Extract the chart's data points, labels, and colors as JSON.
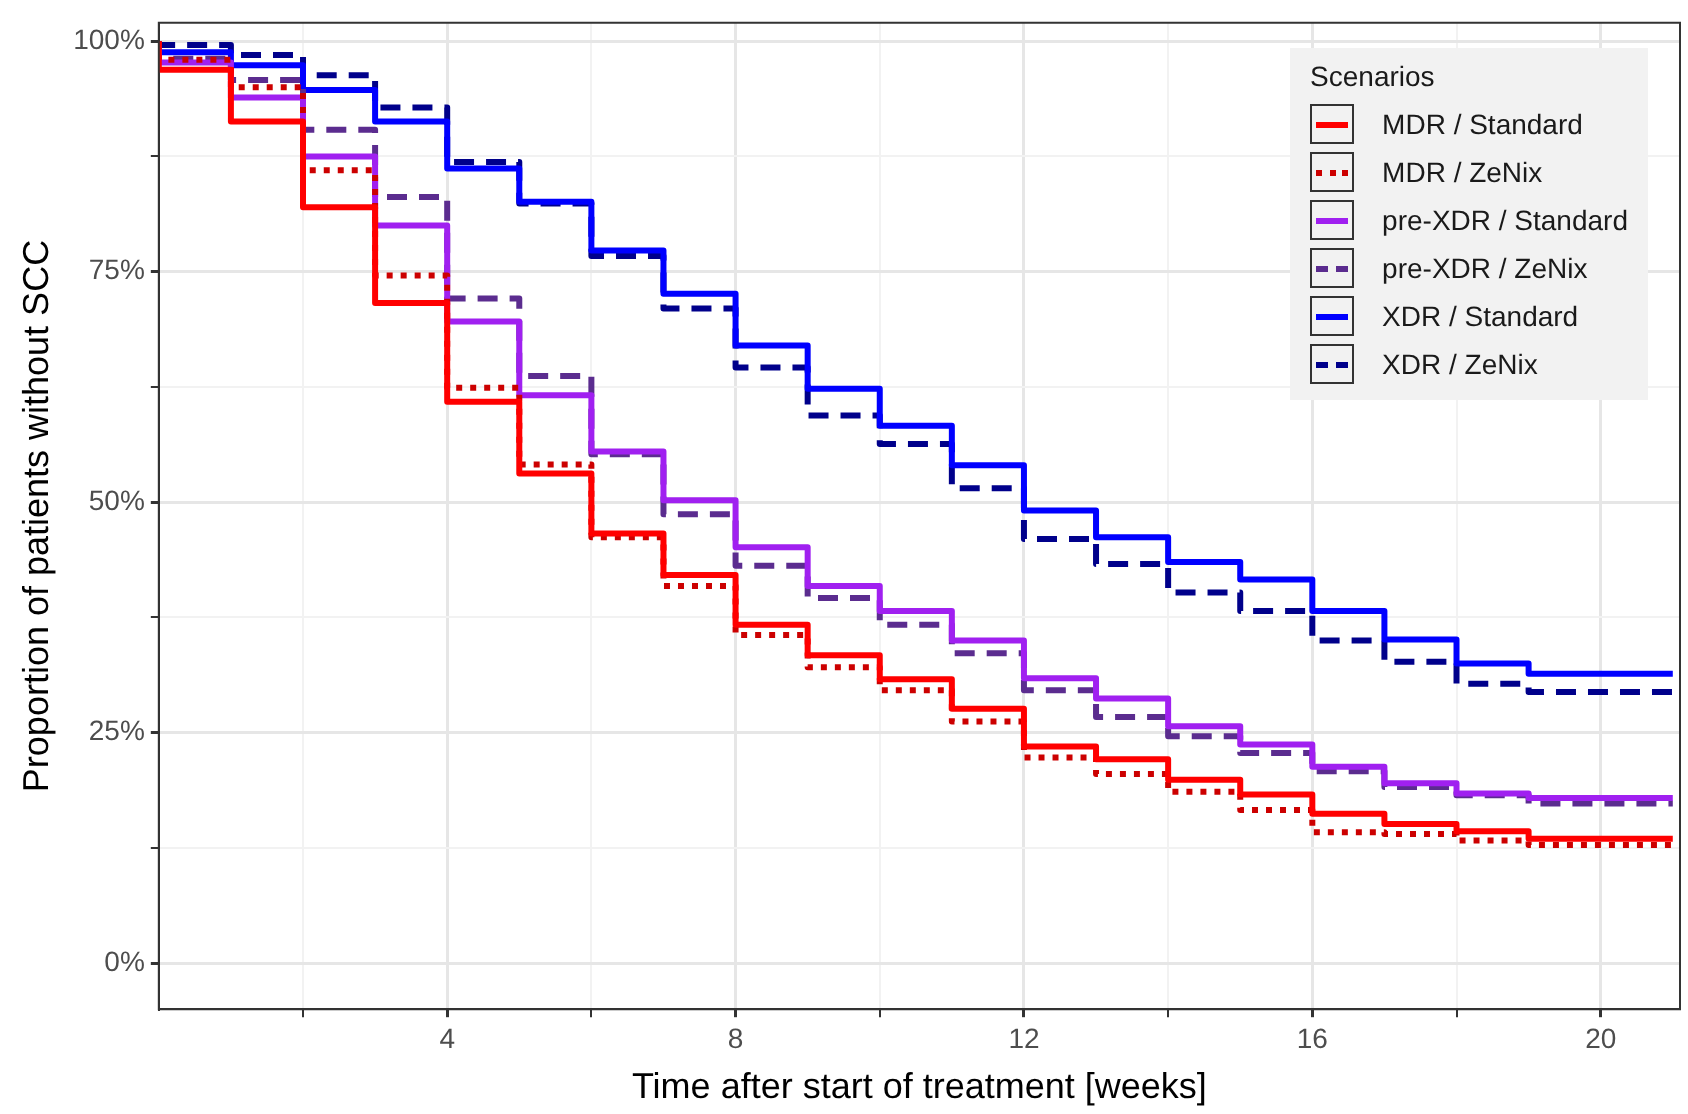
{
  "chart_data": {
    "type": "step",
    "xlabel": "Time after start of treatment [weeks]",
    "ylabel": "Proportion of patients without SCC",
    "legend_title": "Scenarios",
    "legend": "top right",
    "grid": true,
    "x": [
      0,
      1,
      2,
      3,
      4,
      5,
      6,
      7,
      8,
      9,
      10,
      11,
      12,
      13,
      14,
      15,
      16,
      17,
      18,
      19,
      20,
      21
    ],
    "xlim": [
      0,
      21.1
    ],
    "ylim": [
      -5,
      102
    ],
    "xticks": [
      {
        "value": 2,
        "label": null
      },
      4,
      {
        "value": 6,
        "label": null
      },
      8,
      {
        "value": 10,
        "label": null
      },
      12,
      {
        "value": 14,
        "label": null
      },
      16,
      {
        "value": 18,
        "label": null
      },
      20
    ],
    "yticks": [
      {
        "value": 0,
        "label": "0%"
      },
      {
        "value": 12.5,
        "label": null
      },
      {
        "value": 25,
        "label": "25%"
      },
      {
        "value": 37.5,
        "label": null
      },
      {
        "value": 50,
        "label": "50%"
      },
      {
        "value": 62.5,
        "label": null
      },
      {
        "value": 75,
        "label": "75%"
      },
      {
        "value": 87.5,
        "label": null
      },
      {
        "value": 100,
        "label": "100%"
      }
    ],
    "series": [
      {
        "name": "MDR / Standard",
        "color": "#ff0000",
        "line_style": "solid",
        "values": [
          100,
          96.9,
          91.3,
          82,
          71.6,
          60.9,
          53.1,
          46.6,
          42.1,
          36.7,
          33.4,
          30.8,
          27.6,
          23.5,
          22.1,
          19.9,
          18.3,
          16.2,
          15.1,
          14.3,
          13.5,
          13.5
        ]
      },
      {
        "name": "MDR / ZeNix",
        "color": "#cc0000",
        "line_style": "dotted",
        "values": [
          100,
          98,
          95,
          86,
          74.6,
          62.4,
          54.1,
          46.2,
          40.9,
          35.6,
          32.1,
          29.6,
          26.2,
          22.3,
          20.5,
          18.6,
          16.6,
          14.2,
          14,
          13.3,
          12.8,
          12.8
        ]
      },
      {
        "name": "pre-XDR / Standard",
        "color": "#a020f0",
        "line_style": "solid",
        "values": [
          100,
          97.7,
          93.9,
          87.5,
          80,
          69.6,
          61.6,
          55.5,
          50.2,
          45.1,
          40.9,
          38.2,
          35,
          30.9,
          28.7,
          25.7,
          23.7,
          21.3,
          19.5,
          18.4,
          17.9,
          17.9
        ]
      },
      {
        "name": "pre-XDR / ZeNix",
        "color": "#5b2c8f",
        "line_style": "dashed",
        "values": [
          100,
          98.1,
          95.8,
          90.4,
          83.1,
          72.1,
          63.7,
          55.2,
          48.7,
          43.1,
          39.6,
          36.7,
          33.6,
          29.6,
          26.7,
          24.6,
          22.8,
          20.8,
          19.1,
          18.2,
          17.3,
          17.3
        ]
      },
      {
        "name": "XDR / Standard",
        "color": "#0000ff",
        "line_style": "solid",
        "values": [
          100,
          98.8,
          97.4,
          94.7,
          91.3,
          86.2,
          82.6,
          77.3,
          72.6,
          67,
          62.3,
          58.3,
          54,
          49.1,
          46.2,
          43.5,
          41.6,
          38.2,
          35.1,
          32.5,
          31.4,
          31.4
        ]
      },
      {
        "name": "XDR / ZeNix",
        "color": "#00008b",
        "line_style": "dashed",
        "values": [
          100,
          99.6,
          98.5,
          96.3,
          92.8,
          86.9,
          82.4,
          76.7,
          71,
          64.6,
          59.4,
          56.3,
          51.5,
          46,
          43.3,
          40.2,
          38.2,
          35,
          32.7,
          30.3,
          29.4,
          29.4
        ]
      }
    ]
  }
}
